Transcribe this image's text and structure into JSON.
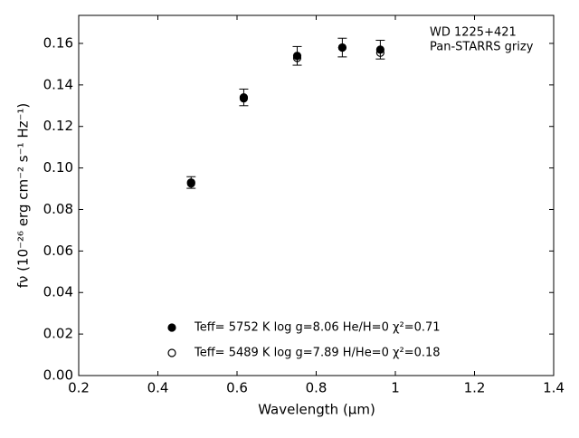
{
  "chart_data": {
    "type": "scatter",
    "xlabel": "Wavelength (μm)",
    "ylabel": "fν (10⁻²⁶ erg cm⁻² s⁻¹ Hz⁻¹)",
    "annotations": [
      "WD 1225+421",
      "Pan-STARRS grizy"
    ],
    "x": [
      0.484,
      0.617,
      0.752,
      0.866,
      0.962
    ],
    "series": [
      {
        "name": "Teff=  5752 K  log g=8.06  He/H=0  χ²=0.71",
        "color": "#000000",
        "marker": "filled",
        "values": [
          0.093,
          0.134,
          0.154,
          0.158,
          0.157
        ],
        "errors": [
          0.0028,
          0.004,
          0.0045,
          0.0045,
          0.0045
        ]
      },
      {
        "name": "Teff=  5489 K  log g=7.89  H/He=0  χ²=0.18",
        "color": "#000000",
        "marker": "open",
        "values": [
          0.0925,
          0.1335,
          0.153,
          0.158,
          0.1555
        ]
      }
    ],
    "xlim": [
      0.2,
      1.4
    ],
    "xticks": [
      0.2,
      0.4,
      0.6,
      0.8,
      1.0,
      1.2,
      1.4
    ],
    "ylim": [
      0,
      0.1735
    ],
    "yticks": [
      {
        "value": 0,
        "label": "0.00"
      },
      {
        "value": 0.02,
        "label": "0.02"
      },
      {
        "value": 0.04,
        "label": "0.04"
      },
      {
        "value": 0.06,
        "label": "0.06"
      },
      {
        "value": 0.08,
        "label": "0.08"
      },
      {
        "value": 0.1,
        "label": "0.10"
      },
      {
        "value": 0.12,
        "label": "0.12"
      },
      {
        "value": 0.14,
        "label": "0.14"
      },
      {
        "value": 0.16,
        "label": "0.16"
      }
    ]
  }
}
